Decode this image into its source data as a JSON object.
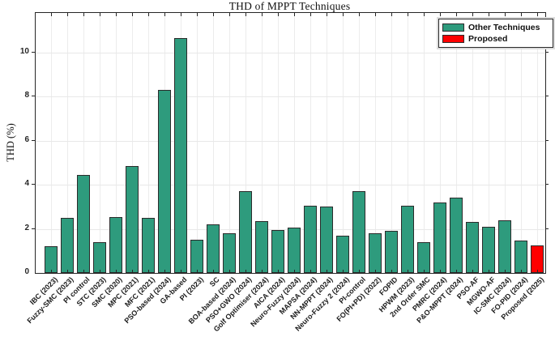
{
  "chart_data": {
    "type": "bar",
    "title": "THD of MPPT Techniques",
    "ylabel": "THD (%)",
    "xlabel": "",
    "ylim": [
      0,
      11.8
    ],
    "yticks": [
      0,
      2,
      4,
      6,
      8,
      10
    ],
    "grid": true,
    "categories": [
      "IBC (2023)",
      "Fuzzy-SMC (2023)",
      "PI control",
      "STC (2023)",
      "SMC (2020)",
      "MPC (2021)",
      "MFC (2021)",
      "PSO-based (2024)",
      "GA-based",
      "PI (2023)",
      "SC",
      "BOA-based (2024)",
      "PSO+GWO (2024)",
      "Golf Optimiser (2024)",
      "AICA (2024)",
      "Neuro-Fuzzy (2024)",
      "MAPSA (2024)",
      "NN-MPPT (2024)",
      "Neuro-Fuzzy 2 (2024)",
      "PI-control",
      "FO(PI+PD) (2022)",
      "FOPID",
      "HPWM (2023)",
      "2nd Order SMC",
      "PMRC (2024)",
      "P&O-MPPT (2024)",
      "PSO-AF",
      "MGWO-AF",
      "IC-SMC (2024)",
      "FO-PID (2024)",
      "Proposed (2025)"
    ],
    "values": [
      1.2,
      2.5,
      4.45,
      1.4,
      2.55,
      4.85,
      2.5,
      8.3,
      10.65,
      1.5,
      2.2,
      1.8,
      3.7,
      2.35,
      1.95,
      2.05,
      3.05,
      3.0,
      1.7,
      3.7,
      1.8,
      1.9,
      3.05,
      1.4,
      3.2,
      3.4,
      2.3,
      2.1,
      2.4,
      1.45,
      1.25
    ],
    "proposed_index": 30,
    "colors": {
      "other": "#2e9b7d",
      "proposed": "#ff0000",
      "edge": "#2b2b2b",
      "axis": "#262626",
      "grid": "#e8e8e8"
    },
    "legend": {
      "position": "top-right",
      "items": [
        {
          "label": "Other Techniques",
          "color": "#2e9b7d"
        },
        {
          "label": "Proposed",
          "color": "#ff0000"
        }
      ]
    }
  }
}
